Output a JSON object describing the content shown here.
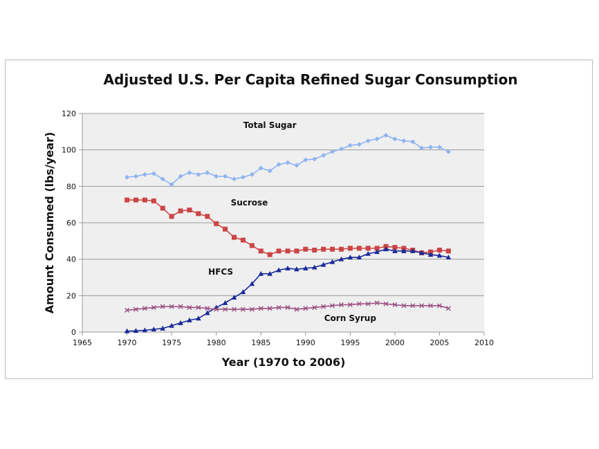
{
  "chart_data": {
    "type": "line",
    "title": "Adjusted U.S. Per Capita Refined Sugar Consumption",
    "xlabel": "Year (1970 to 2006)",
    "ylabel": "Amount Consumed (lbs/year)",
    "xlim": [
      1965,
      2010
    ],
    "ylim": [
      0,
      120
    ],
    "xticks": [
      1965,
      1970,
      1975,
      1980,
      1985,
      1990,
      1995,
      2000,
      2005,
      2010
    ],
    "yticks": [
      0,
      20,
      40,
      60,
      80,
      100,
      120
    ],
    "grid": "horizontal",
    "legend": "none (inline labels)",
    "x": [
      1970,
      1971,
      1972,
      1973,
      1974,
      1975,
      1976,
      1977,
      1978,
      1979,
      1980,
      1981,
      1982,
      1983,
      1984,
      1985,
      1986,
      1987,
      1988,
      1989,
      1990,
      1991,
      1992,
      1993,
      1994,
      1995,
      1996,
      1997,
      1998,
      1999,
      2000,
      2001,
      2002,
      2003,
      2004,
      2005,
      2006
    ],
    "series": [
      {
        "name": "Total Sugar",
        "color": "#8fb4f0",
        "marker": "diamond",
        "label_at": [
          1986,
          112
        ],
        "values": [
          85,
          85.5,
          86.5,
          87,
          84,
          81,
          85.5,
          87.5,
          86.5,
          87.5,
          85.5,
          85.5,
          84,
          85,
          86.5,
          90,
          88.5,
          92,
          93,
          91.5,
          94.5,
          95,
          97,
          99,
          100.5,
          102.5,
          103,
          105,
          106,
          108,
          106,
          105,
          104.5,
          101,
          101.5,
          101.5,
          99
        ]
      },
      {
        "name": "Sucrose",
        "color": "#cc4444",
        "marker": "square",
        "label_at": [
          1983.7,
          69.5
        ],
        "values": [
          72.5,
          72.5,
          72.5,
          72,
          68,
          63.5,
          66.5,
          67,
          65,
          63.5,
          59.5,
          56.5,
          52,
          50.5,
          47.5,
          44.5,
          42.5,
          44.5,
          44.5,
          44.5,
          45.5,
          45,
          45.5,
          45.5,
          45.5,
          46,
          46,
          46,
          46,
          47,
          46.5,
          46,
          45,
          43.5,
          44,
          45,
          44.5
        ]
      },
      {
        "name": "HFCS",
        "color": "#1a2a9a",
        "marker": "triangle",
        "label_at": [
          1980.5,
          31.5
        ],
        "values": [
          0.5,
          0.7,
          1,
          1.5,
          2,
          3.5,
          5,
          6.5,
          7.5,
          10.5,
          13.5,
          16,
          19,
          22,
          26.5,
          32,
          32,
          34,
          35,
          34.5,
          35,
          35.5,
          37,
          38.5,
          40,
          41,
          41,
          43,
          44,
          45.5,
          44.5,
          44.5,
          44.5,
          43.5,
          42.5,
          42,
          41
        ]
      },
      {
        "name": "Corn Syrup",
        "color": "#9a4f80",
        "marker": "x",
        "label_at": [
          1995,
          6
        ],
        "values": [
          12,
          12.5,
          13,
          13.5,
          14,
          14,
          14,
          13.5,
          13.5,
          13,
          12.5,
          12.5,
          12.5,
          12.5,
          12.5,
          13,
          13,
          13.5,
          13.5,
          12.5,
          13,
          13.5,
          14,
          14.5,
          15,
          15,
          15.5,
          15.5,
          16,
          15.5,
          15,
          14.5,
          14.5,
          14.5,
          14.5,
          14.5,
          13
        ]
      }
    ]
  }
}
